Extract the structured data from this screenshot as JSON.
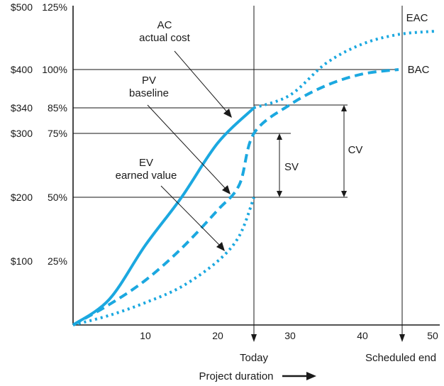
{
  "colors": {
    "curve": "#1ba8e0",
    "grid": "#8a8a8a",
    "ink": "#1a1a1a"
  },
  "chart_data": {
    "type": "line",
    "xlim": [
      0,
      50
    ],
    "x_ticks": [
      "10",
      "20",
      "30",
      "40",
      "50"
    ],
    "y_ticks": [
      {
        "dollar": "$500",
        "percent": "125%",
        "value": 500
      },
      {
        "dollar": "$400",
        "percent": "100%",
        "value": 400
      },
      {
        "dollar": "$340",
        "percent": "85%",
        "value": 340
      },
      {
        "dollar": "$300",
        "percent": "75%",
        "value": 300
      },
      {
        "dollar": "$200",
        "percent": "50%",
        "value": 200
      },
      {
        "dollar": "$100",
        "percent": "25%",
        "value": 100
      }
    ],
    "ylim": [
      0,
      500
    ],
    "today_x": 25,
    "scheduled_end_x": 45,
    "series": [
      {
        "key": "ac",
        "name": "AC",
        "style": "solid",
        "points": [
          [
            0,
            0
          ],
          [
            5,
            40
          ],
          [
            10,
            125
          ],
          [
            15,
            200
          ],
          [
            20,
            285
          ],
          [
            25,
            340
          ]
        ],
        "projection": [
          [
            25,
            340
          ],
          [
            30,
            360
          ],
          [
            35,
            410
          ],
          [
            40,
            440
          ],
          [
            45,
            455
          ],
          [
            50,
            460
          ]
        ]
      },
      {
        "key": "pv",
        "name": "PV",
        "style": "dashed",
        "points": [
          [
            0,
            0
          ],
          [
            5,
            32
          ],
          [
            10,
            70
          ],
          [
            15,
            120
          ],
          [
            20,
            180
          ],
          [
            23,
            220
          ],
          [
            25,
            300
          ],
          [
            30,
            345
          ],
          [
            35,
            375
          ],
          [
            40,
            393
          ],
          [
            45,
            400
          ]
        ]
      },
      {
        "key": "ev",
        "name": "EV",
        "style": "dotted",
        "points": [
          [
            0,
            0
          ],
          [
            5,
            15
          ],
          [
            10,
            35
          ],
          [
            15,
            60
          ],
          [
            20,
            100
          ],
          [
            23,
            140
          ],
          [
            25,
            200
          ]
        ]
      }
    ],
    "labels": {
      "ac_title": "AC",
      "ac_sub": "actual cost",
      "pv_title": "PV",
      "pv_sub": "baseline",
      "ev_title": "EV",
      "ev_sub": "earned value",
      "eac": "EAC",
      "bac": "BAC",
      "cv": "CV",
      "sv": "SV",
      "today": "Today",
      "scheduled_end": "Scheduled end",
      "xlabel": "Project duration"
    }
  }
}
